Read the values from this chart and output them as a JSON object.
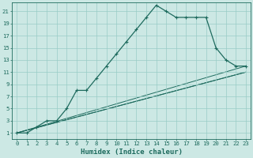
{
  "xlabel": "Humidex (Indice chaleur)",
  "background_color": "#cce8e4",
  "grid_color": "#99ccc6",
  "line_color": "#1e6b5e",
  "xlim": [
    -0.5,
    23.5
  ],
  "ylim": [
    0.0,
    22.5
  ],
  "xticks": [
    0,
    1,
    2,
    3,
    4,
    5,
    6,
    7,
    8,
    9,
    10,
    11,
    12,
    13,
    14,
    15,
    16,
    17,
    18,
    19,
    20,
    21,
    22,
    23
  ],
  "yticks": [
    1,
    3,
    5,
    7,
    9,
    11,
    13,
    15,
    17,
    19,
    21
  ],
  "curve_x": [
    0,
    1,
    2,
    3,
    4,
    5,
    6,
    7,
    8,
    9,
    10,
    11,
    12,
    13,
    14,
    15,
    16,
    17,
    18,
    19,
    20,
    21,
    22,
    23
  ],
  "curve_y": [
    1,
    1,
    2,
    3,
    3,
    5,
    8,
    8,
    10,
    12,
    14,
    16,
    18,
    20,
    22,
    21,
    20,
    20,
    20,
    20,
    15,
    13,
    12,
    12
  ],
  "line2_x": [
    0,
    23
  ],
  "line2_y": [
    1,
    12
  ],
  "line3_x": [
    0,
    23
  ],
  "line3_y": [
    1,
    11
  ],
  "line4_x": [
    0,
    23
  ],
  "line4_y": [
    1,
    11
  ]
}
